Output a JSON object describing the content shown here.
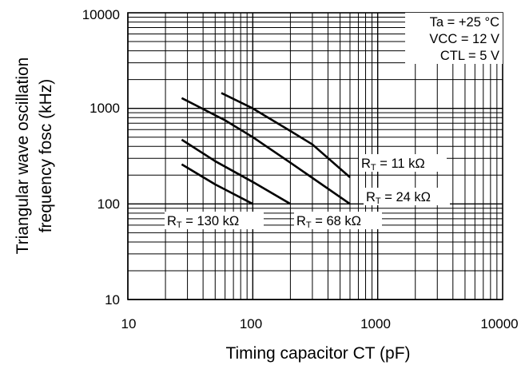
{
  "chart_data": {
    "type": "line",
    "x_scale": "log",
    "y_scale": "log",
    "xlim": [
      10,
      10000
    ],
    "ylim": [
      10,
      10000
    ],
    "grid": true,
    "xlabel": "Timing capacitor CT (pF)",
    "ylabel_line1": "Triangular wave oscillation",
    "ylabel_line2": "frequency fosc (kHz)",
    "x_ticks": [
      "10",
      "100",
      "1000",
      "10000"
    ],
    "y_ticks": [
      "10",
      "100",
      "1000",
      "10000"
    ],
    "conditions": [
      "Ta = +25 °C",
      "VCC = 12 V",
      "CTL = 5 V"
    ],
    "series": [
      {
        "name": "RT = 11 kΩ",
        "label_main": "R",
        "label_sub": "T",
        "label_rest": " = 11 kΩ",
        "x": [
          56,
          100,
          200,
          300,
          600
        ],
        "y": [
          1450,
          1000,
          580,
          420,
          190
        ]
      },
      {
        "name": "RT = 24 kΩ",
        "label_main": "R",
        "label_sub": "T",
        "label_rest": " = 24 kΩ",
        "x": [
          27,
          60,
          100,
          200,
          600
        ],
        "y": [
          1280,
          750,
          500,
          270,
          100
        ]
      },
      {
        "name": "RT = 68 kΩ",
        "label_main": "R",
        "label_sub": "T",
        "label_rest": " = 68 kΩ",
        "x": [
          27,
          50,
          100,
          200
        ],
        "y": [
          470,
          280,
          170,
          100
        ]
      },
      {
        "name": "RT = 130 kΩ",
        "label_main": "R",
        "label_sub": "T",
        "label_rest": " = 130 kΩ",
        "x": [
          27,
          50,
          100
        ],
        "y": [
          260,
          160,
          100
        ]
      }
    ]
  }
}
